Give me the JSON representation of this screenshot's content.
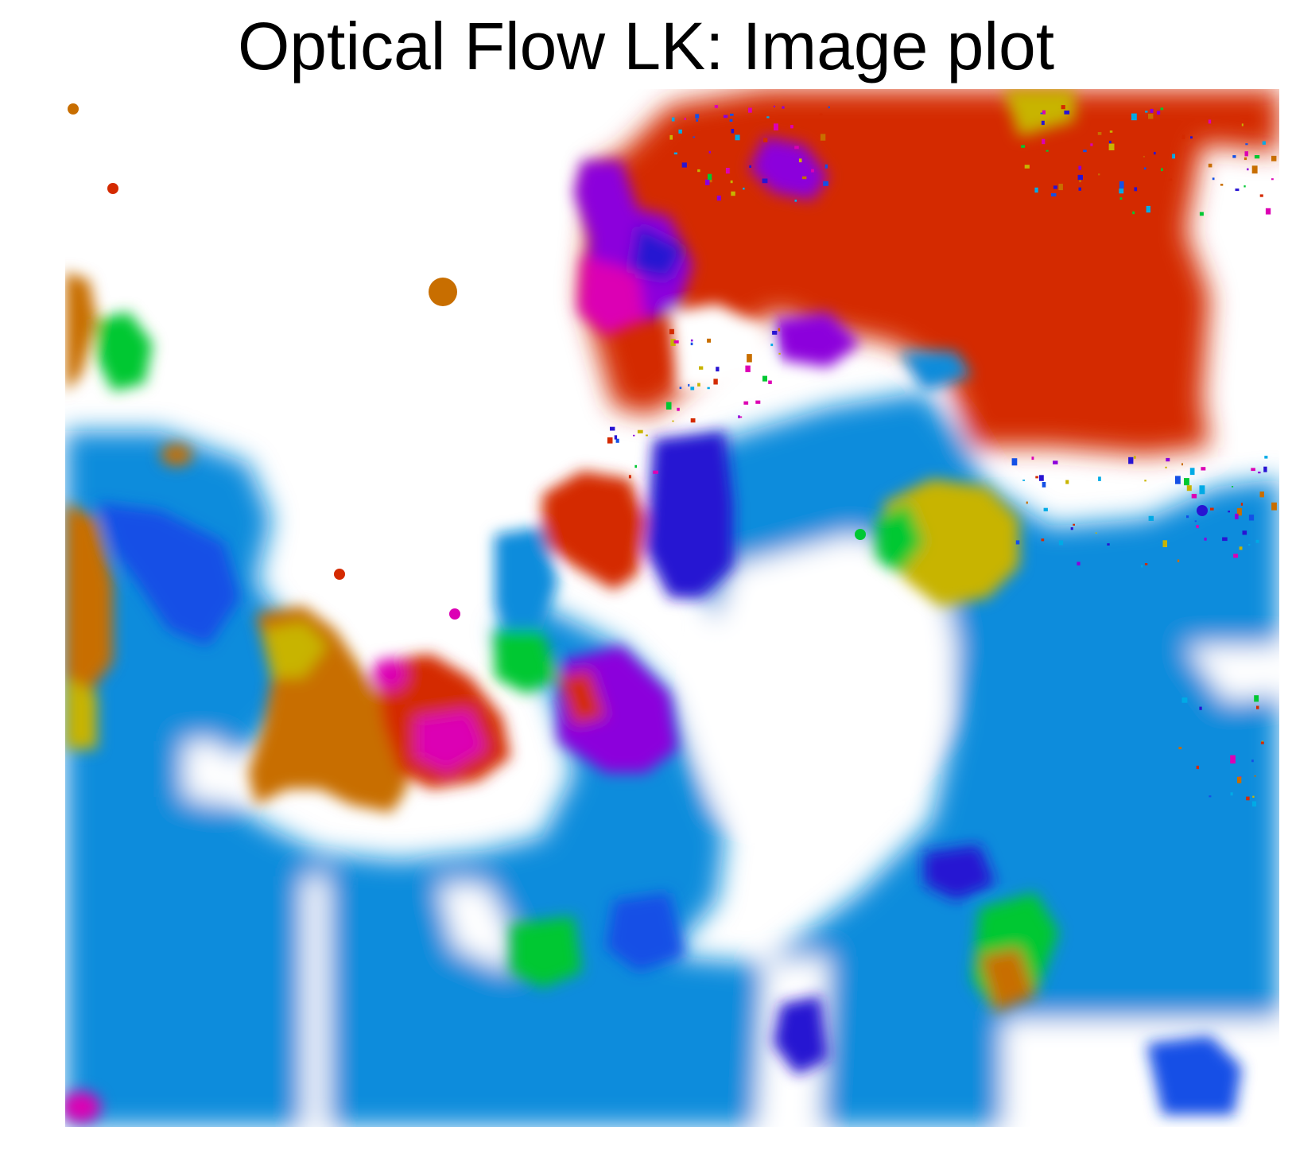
{
  "chart_data": {
    "type": "heatmap",
    "title": "Optical Flow LK: Image plot",
    "xlabel": "",
    "ylabel": "",
    "axes_visible": false,
    "grid": false,
    "legend": "none",
    "colormap": "hsv (flow direction hue); white = no flow / masked",
    "colors": {
      "background": "#ffffff",
      "red": "#d42a00",
      "orange": "#c86e00",
      "yellow": "#c8b400",
      "green": "#00c832",
      "cyan": "#00aae6",
      "teal_blue": "#0a8cdc",
      "blue": "#1450e6",
      "indigo": "#2814d2",
      "violet": "#8c00dc",
      "magenta": "#dc00b4"
    },
    "regions": [
      {
        "name": "top-right red flow region",
        "color": "red"
      },
      {
        "name": "upper-middle violet/magenta cluster",
        "color": "violet"
      },
      {
        "name": "left edge orange-yellow strip",
        "color": "orange"
      },
      {
        "name": "left cyan-blue cluster",
        "color": "teal_blue"
      },
      {
        "name": "center red blob",
        "color": "red"
      },
      {
        "name": "center magenta-red blob",
        "color": "magenta"
      },
      {
        "name": "center orange-yellow blob",
        "color": "orange"
      },
      {
        "name": "central indigo column",
        "color": "indigo"
      },
      {
        "name": "right-middle yellow-green blob",
        "color": "yellow"
      },
      {
        "name": "bottom cyan-blue field",
        "color": "teal_blue"
      },
      {
        "name": "bottom-right green-yellow strip",
        "color": "green"
      },
      {
        "name": "right noisy cyan texture",
        "color": "cyan"
      }
    ]
  }
}
